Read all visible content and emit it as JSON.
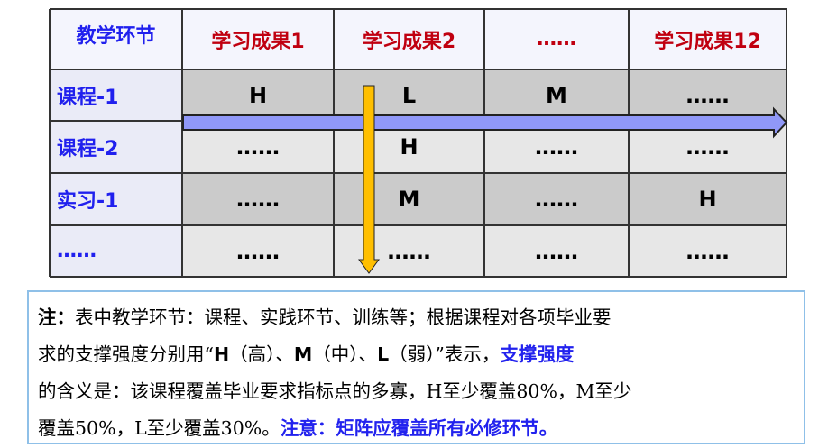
{
  "table": {
    "corner": "教学环节",
    "columns": [
      "学习成果1",
      "学习成果2",
      "……",
      "学习成果12"
    ],
    "rows": [
      {
        "label": "课程-1",
        "values": [
          "H",
          "L",
          "M",
          "……"
        ]
      },
      {
        "label": "课程-2",
        "values": [
          "……",
          "H",
          "……",
          "……"
        ]
      },
      {
        "label": "实习-1",
        "values": [
          "……",
          "M",
          "……",
          "H"
        ]
      },
      {
        "label": "……",
        "values": [
          "……",
          "……",
          "……",
          "……"
        ]
      }
    ]
  },
  "arrows": {
    "horizontal_color": "#9098f8",
    "vertical_color": "#ffbf00"
  },
  "note": {
    "l1_label": "注：",
    "l1_text": "表中教学环节：课程、实践环节、训练等；根据课程对各项毕业要",
    "l2_a": "求的支撑强度分别用“",
    "l2_h": "H",
    "l2_b": "（高）、",
    "l2_m": "M",
    "l2_c": "（中）、",
    "l2_l": "L",
    "l2_d": "（弱）”表示，",
    "l2_blue": "支撑强度",
    "l3": "的含义是：该课程覆盖毕业要求指标点的多寡，H至少覆盖80%，M至少",
    "l4_a": "覆盖50%，L至少覆盖30%。",
    "l4_blue": "注意：矩阵应覆盖所有必修环节。"
  }
}
